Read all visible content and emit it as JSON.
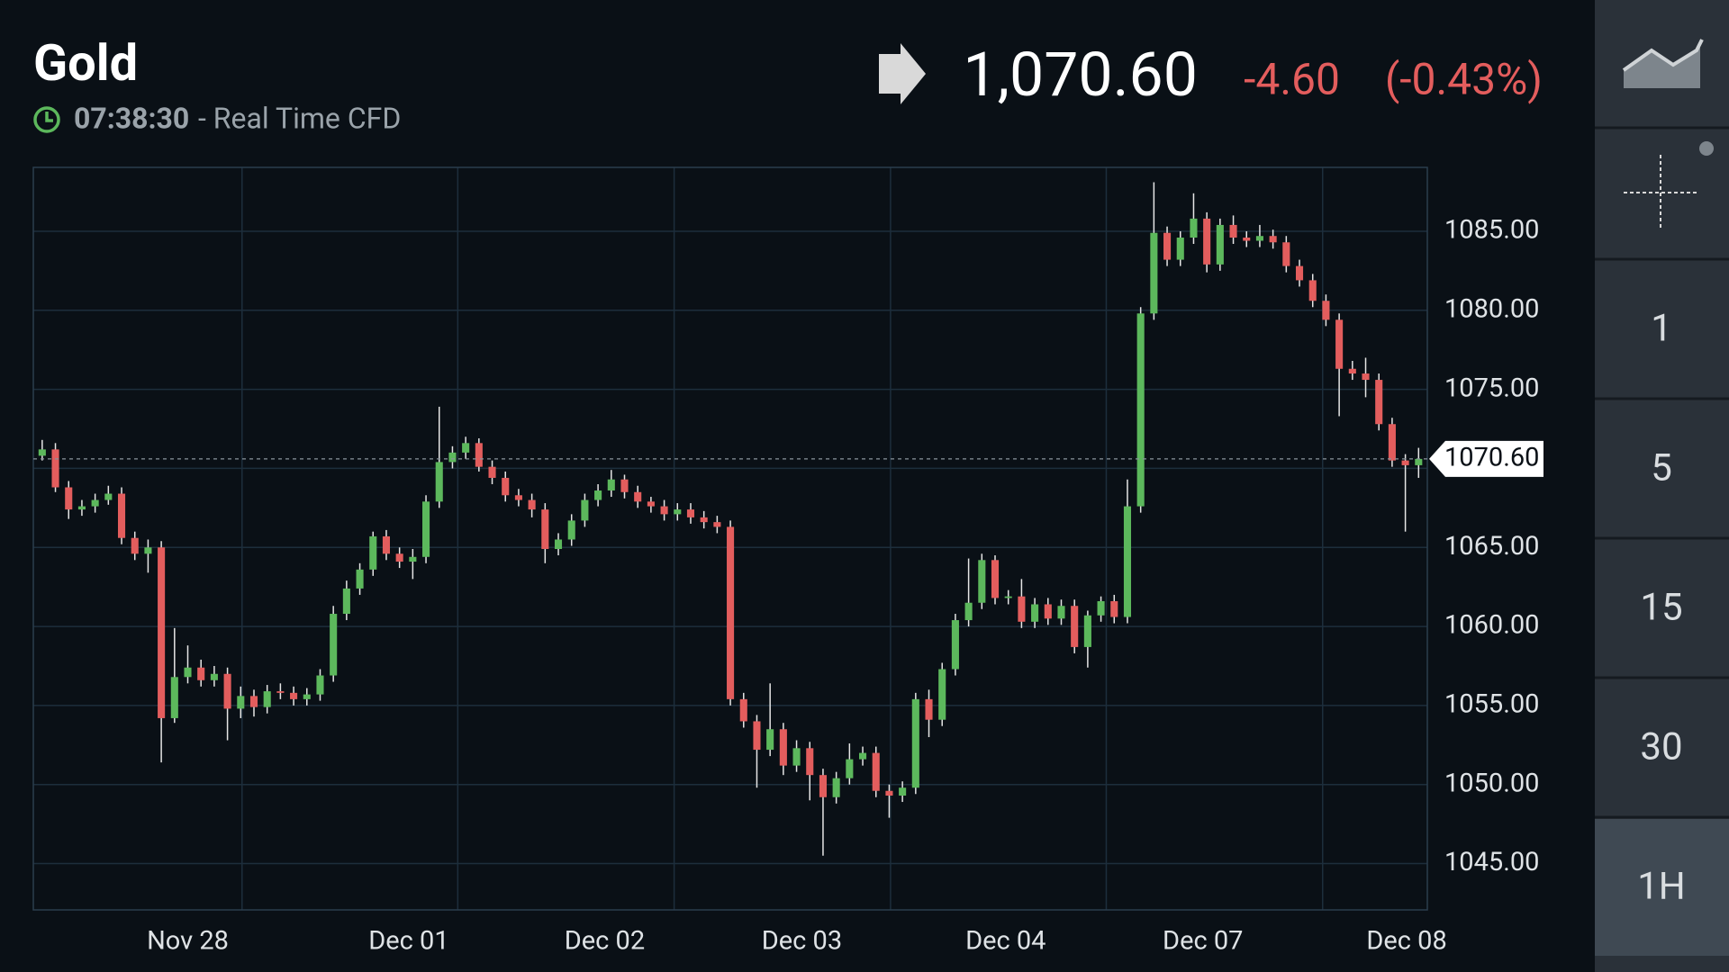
{
  "header": {
    "title": "Gold",
    "time": "07:38:30",
    "source": "- Real Time CFD"
  },
  "quote": {
    "price": "1,070.60",
    "change": "-4.60",
    "change_pct": "(-0.43%)"
  },
  "sidebar": {
    "intervals": [
      "1",
      "5",
      "15",
      "30",
      "1H"
    ],
    "selected_index": 4
  },
  "chart_data": {
    "type": "candlestick",
    "up_color": "#5cb85c",
    "down_color": "#e35d5d",
    "xlim": [
      -0.67,
      104.66
    ],
    "ylim": [
      1042.07,
      1089.04
    ],
    "yticks": [
      {
        "value": 1045,
        "label": "1045.00"
      },
      {
        "value": 1050,
        "label": "1050.00"
      },
      {
        "value": 1055,
        "label": "1055.00"
      },
      {
        "value": 1060,
        "label": "1060.00"
      },
      {
        "value": 1065,
        "label": "1065.00"
      },
      {
        "value": 1070,
        "label": "1070.00"
      },
      {
        "value": 1075,
        "label": "1075.00"
      },
      {
        "value": 1080,
        "label": "1080.00"
      },
      {
        "value": 1085,
        "label": "1085.00"
      }
    ],
    "xticks": [
      {
        "value": 11,
        "label": "Nov 28"
      },
      {
        "value": 27.7,
        "label": "Dec 01"
      },
      {
        "value": 42.5,
        "label": "Dec 02"
      },
      {
        "value": 57.4,
        "label": "Dec 03"
      },
      {
        "value": 72.8,
        "label": "Dec 04"
      },
      {
        "value": 87.7,
        "label": "Dec 07"
      },
      {
        "value": 103.1,
        "label": "Dec 08"
      }
    ],
    "xgrid": [
      15.1,
      31.4,
      47.75,
      64.1,
      80.4,
      96.75
    ],
    "grid": true,
    "last": {
      "value": 1070.6,
      "label": "1070.60"
    },
    "open": [
      1070.8,
      1071.2,
      1068.8,
      1067.4,
      1067.6,
      1068.0,
      1068.4,
      1065.6,
      1064.6,
      1065.0,
      1054.2,
      1056.8,
      1057.4,
      1056.6,
      1057.0,
      1054.8,
      1055.6,
      1054.9,
      1055.9,
      1055.8,
      1055.4,
      1055.7,
      1056.9,
      1060.8,
      1062.4,
      1063.6,
      1065.7,
      1064.6,
      1064.1,
      1064.4,
      1067.9,
      1070.4,
      1071.0,
      1071.6,
      1070.1,
      1069.4,
      1068.3,
      1068.0,
      1067.4,
      1064.9,
      1065.5,
      1066.7,
      1068.0,
      1068.6,
      1069.3,
      1068.5,
      1067.9,
      1067.6,
      1067.1,
      1067.4,
      1066.9,
      1066.6,
      1066.3,
      1055.4,
      1054.0,
      1052.2,
      1053.5,
      1051.2,
      1052.3,
      1050.6,
      1049.2,
      1050.4,
      1051.6,
      1052.0,
      1049.6,
      1049.3,
      1049.8,
      1055.4,
      1054.1,
      1057.3,
      1060.4,
      1061.5,
      1064.2,
      1061.8,
      1061.9,
      1060.3,
      1061.4,
      1060.5,
      1061.3,
      1058.7,
      1060.7,
      1061.6,
      1060.6,
      1067.6,
      1079.8,
      1084.9,
      1083.2,
      1084.6,
      1085.8,
      1082.9,
      1085.4,
      1084.6,
      1084.4,
      1084.7,
      1084.3,
      1082.8,
      1081.9,
      1080.6,
      1079.4,
      1076.3,
      1076.0,
      1075.6,
      1072.8,
      1070.5,
      1070.2
    ],
    "high": [
      1071.8,
      1071.6,
      1069.2,
      1068.0,
      1068.4,
      1068.9,
      1068.8,
      1066.0,
      1065.5,
      1065.4,
      1059.9,
      1058.8,
      1057.9,
      1057.5,
      1057.4,
      1056.2,
      1056.0,
      1056.3,
      1056.4,
      1056.2,
      1056.1,
      1057.3,
      1061.3,
      1062.9,
      1064.0,
      1066.0,
      1066.1,
      1065.0,
      1064.9,
      1068.3,
      1073.9,
      1071.4,
      1072.0,
      1071.9,
      1070.5,
      1069.8,
      1068.7,
      1068.4,
      1067.8,
      1065.9,
      1067.1,
      1068.4,
      1069.0,
      1069.9,
      1069.6,
      1068.9,
      1068.2,
      1068.0,
      1067.8,
      1067.8,
      1067.3,
      1067.0,
      1066.7,
      1055.8,
      1054.4,
      1056.4,
      1053.9,
      1052.8,
      1052.7,
      1051.0,
      1050.8,
      1052.6,
      1052.4,
      1052.4,
      1050.0,
      1050.2,
      1055.8,
      1056.0,
      1057.7,
      1060.8,
      1064.3,
      1064.6,
      1064.5,
      1062.3,
      1063.0,
      1061.8,
      1061.8,
      1061.7,
      1061.7,
      1061.0,
      1061.9,
      1062.0,
      1069.3,
      1080.2,
      1088.1,
      1085.3,
      1085.0,
      1087.4,
      1086.2,
      1085.8,
      1086.0,
      1085.0,
      1085.4,
      1085.1,
      1084.7,
      1083.2,
      1082.3,
      1081.0,
      1079.8,
      1076.8,
      1077.0,
      1076.0,
      1073.2,
      1070.9,
      1071.3
    ],
    "low": [
      1070.5,
      1068.5,
      1066.8,
      1067.0,
      1067.2,
      1067.7,
      1065.2,
      1064.2,
      1063.4,
      1051.4,
      1053.9,
      1056.4,
      1056.2,
      1056.2,
      1052.8,
      1054.2,
      1054.3,
      1054.5,
      1055.4,
      1055.0,
      1055.0,
      1055.3,
      1056.5,
      1060.4,
      1062.0,
      1063.2,
      1064.2,
      1063.7,
      1063.0,
      1064.0,
      1067.5,
      1070.0,
      1070.6,
      1069.8,
      1069.0,
      1067.9,
      1067.6,
      1066.9,
      1064.0,
      1064.5,
      1065.1,
      1066.3,
      1067.6,
      1068.2,
      1068.1,
      1067.5,
      1067.2,
      1066.7,
      1066.7,
      1066.5,
      1066.2,
      1065.9,
      1055.0,
      1053.6,
      1049.8,
      1051.8,
      1050.6,
      1050.8,
      1049.0,
      1045.5,
      1048.8,
      1050.0,
      1051.2,
      1049.2,
      1047.9,
      1048.9,
      1049.4,
      1053.0,
      1053.7,
      1056.9,
      1060.0,
      1061.1,
      1061.4,
      1061.4,
      1059.9,
      1059.9,
      1060.1,
      1060.1,
      1058.3,
      1057.4,
      1060.3,
      1060.2,
      1060.2,
      1067.2,
      1079.4,
      1082.8,
      1082.8,
      1084.2,
      1082.4,
      1082.5,
      1084.2,
      1084.0,
      1084.0,
      1083.9,
      1082.4,
      1081.5,
      1080.2,
      1079.0,
      1073.3,
      1075.6,
      1074.5,
      1072.4,
      1070.1,
      1066.0,
      1069.4
    ],
    "close": [
      1071.2,
      1068.8,
      1067.4,
      1067.6,
      1068.0,
      1068.4,
      1065.6,
      1064.6,
      1065.0,
      1054.2,
      1056.8,
      1057.4,
      1056.6,
      1057.0,
      1054.8,
      1055.6,
      1054.9,
      1055.9,
      1055.8,
      1055.4,
      1055.7,
      1056.9,
      1060.8,
      1062.4,
      1063.6,
      1065.7,
      1064.6,
      1064.1,
      1064.4,
      1067.9,
      1070.4,
      1071.0,
      1071.6,
      1070.1,
      1069.4,
      1068.3,
      1068.0,
      1067.4,
      1064.9,
      1065.5,
      1066.7,
      1068.0,
      1068.6,
      1069.3,
      1068.5,
      1067.9,
      1067.6,
      1067.1,
      1067.4,
      1066.9,
      1066.6,
      1066.3,
      1055.4,
      1054.0,
      1052.2,
      1053.5,
      1051.2,
      1052.3,
      1050.6,
      1049.2,
      1050.4,
      1051.6,
      1052.0,
      1049.6,
      1049.3,
      1049.8,
      1055.4,
      1054.1,
      1057.3,
      1060.4,
      1061.5,
      1064.2,
      1061.8,
      1061.9,
      1060.3,
      1061.4,
      1060.5,
      1061.3,
      1058.7,
      1060.7,
      1061.6,
      1060.6,
      1067.6,
      1079.8,
      1084.9,
      1083.2,
      1084.6,
      1085.8,
      1082.9,
      1085.4,
      1084.6,
      1084.4,
      1084.7,
      1084.3,
      1082.8,
      1081.9,
      1080.6,
      1079.4,
      1076.3,
      1076.0,
      1075.6,
      1072.8,
      1070.5,
      1070.2,
      1070.6
    ]
  }
}
